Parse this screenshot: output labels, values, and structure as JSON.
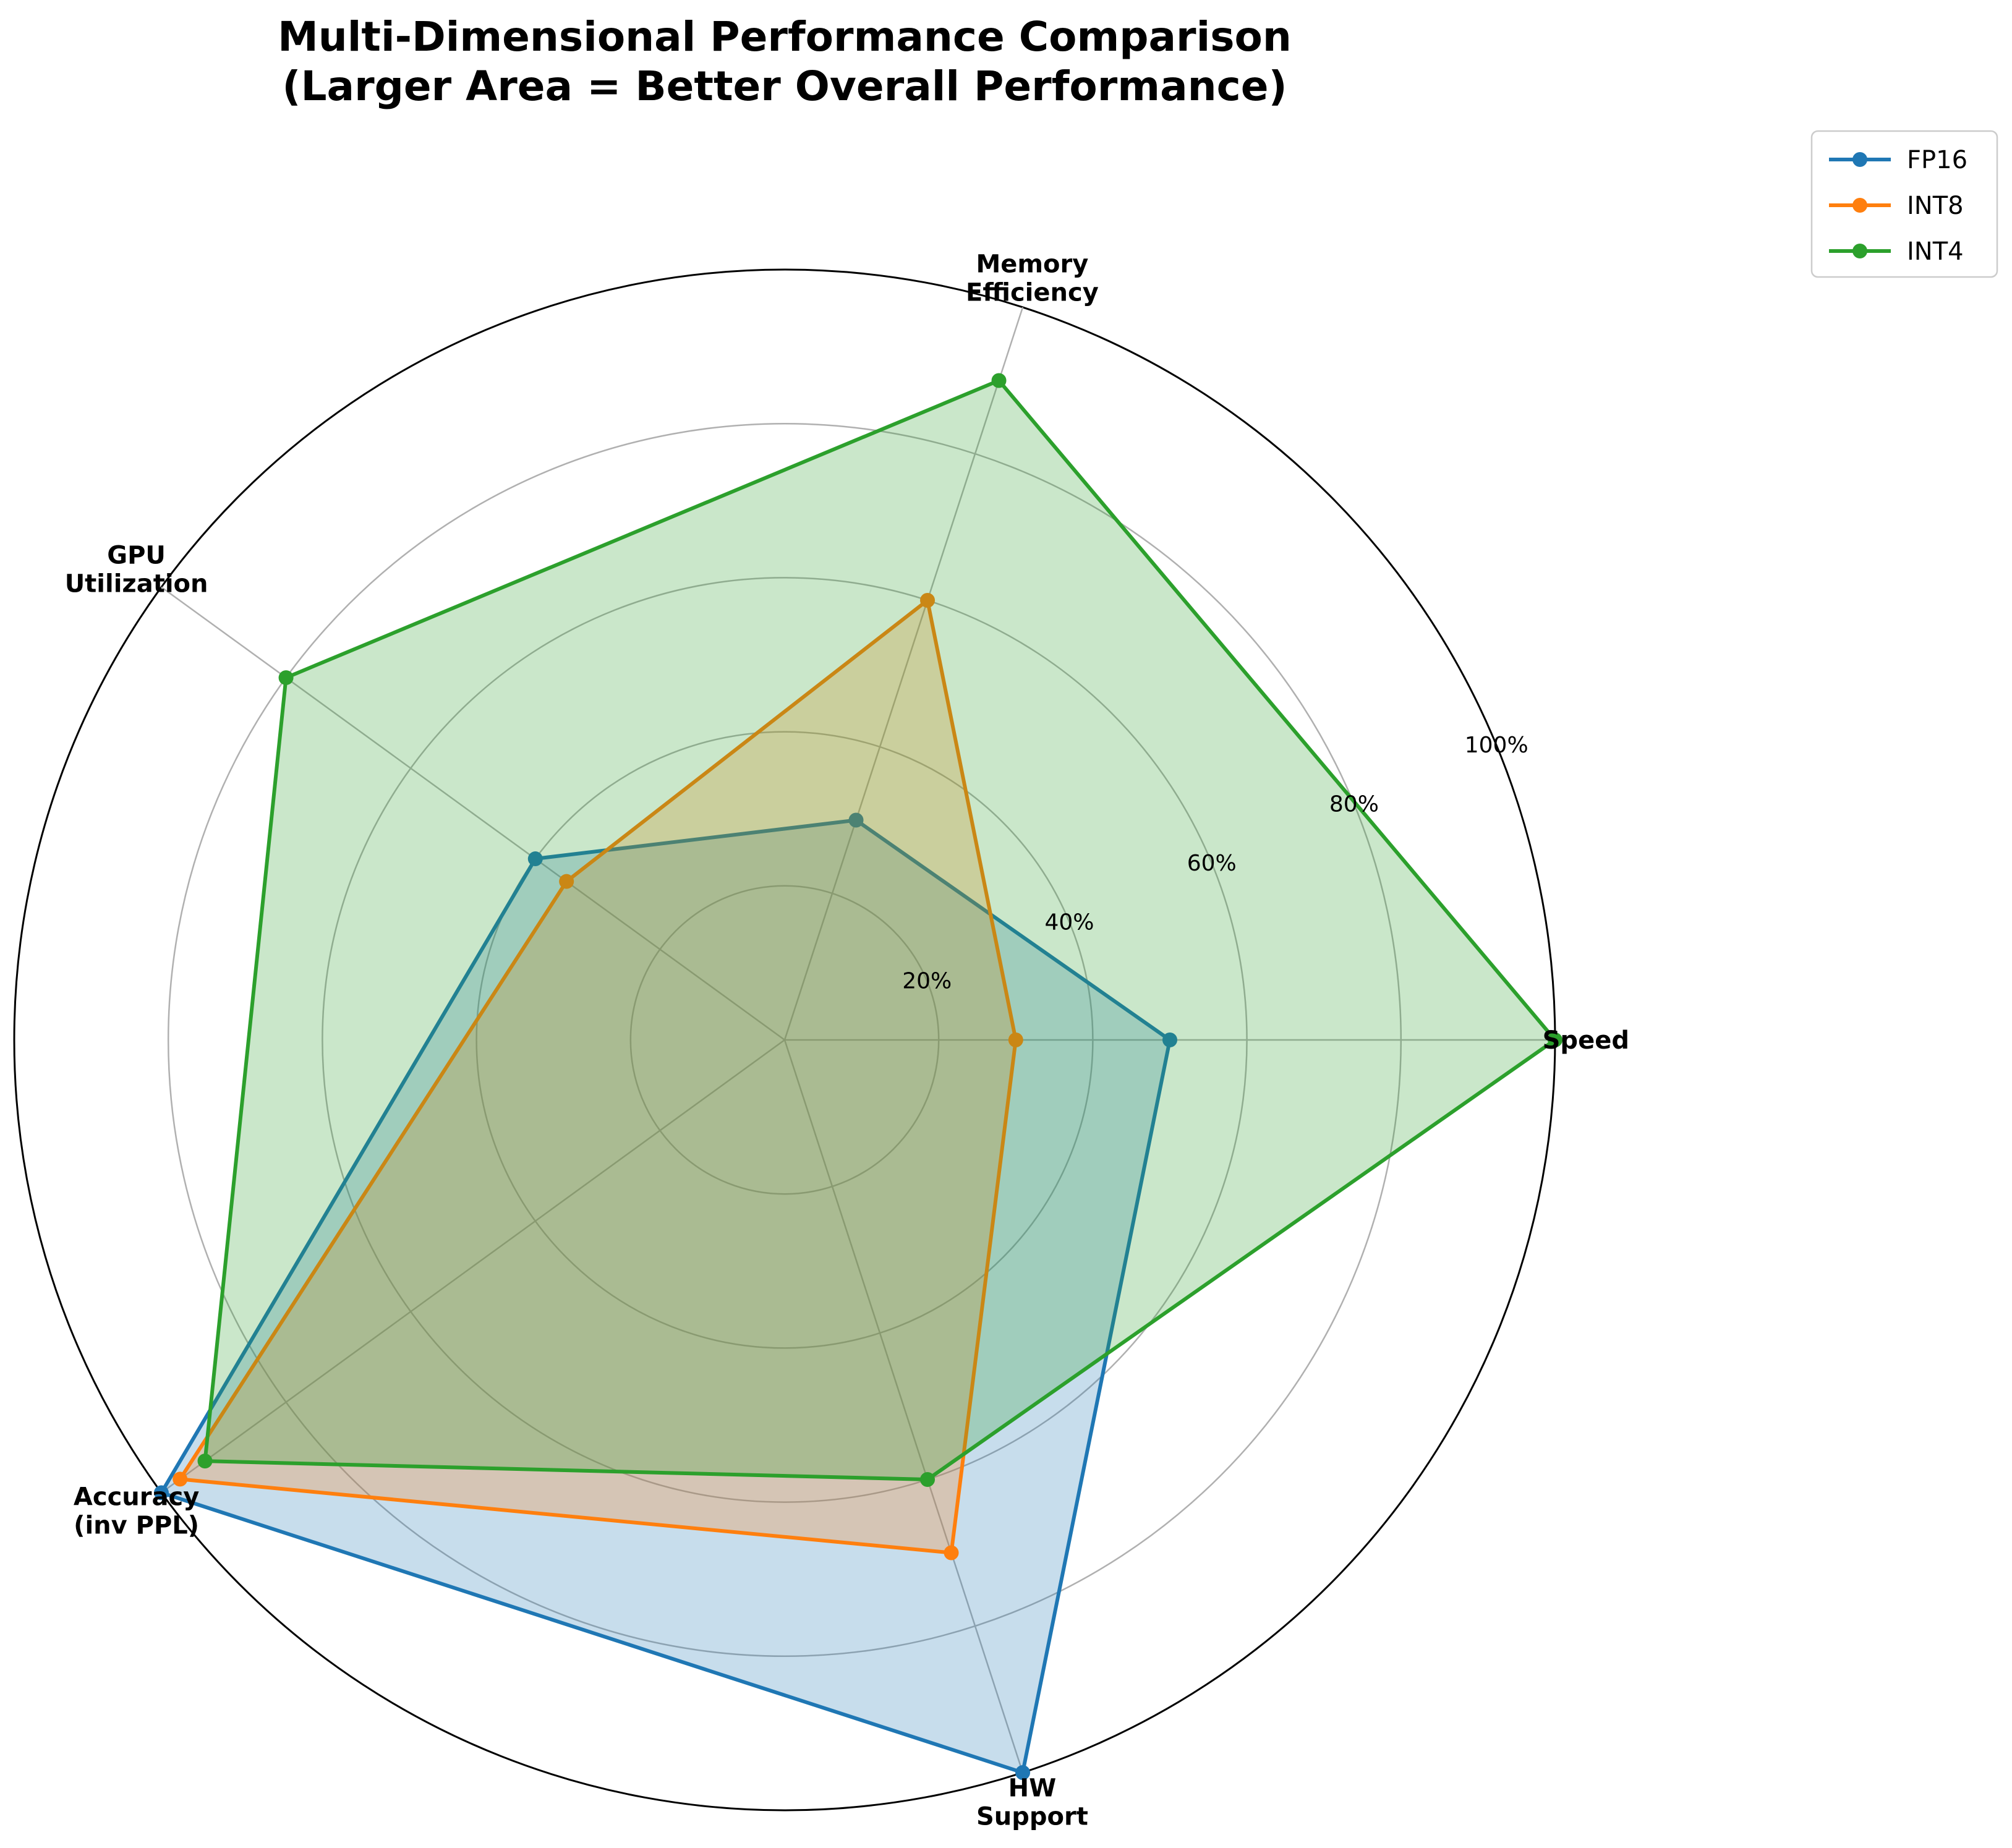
{
  "chart_data": {
    "type": "radar",
    "title": "Multi-Dimensional Performance Comparison\n(Larger Area = Better Overall Performance)",
    "axes": [
      "Speed",
      "Memory\nEfficiency",
      "GPU\nUtilization",
      "Accuracy\n(inv PPL)",
      "HW\nSupport"
    ],
    "rlim": [
      0,
      100
    ],
    "r_ticks": [
      20,
      40,
      60,
      80,
      100
    ],
    "r_tick_labels": [
      "20%",
      "40%",
      "60%",
      "80%",
      "100%"
    ],
    "grid": true,
    "legend_position": "top-right",
    "series": [
      {
        "name": "FP16",
        "color": "#1f77b4",
        "values": [
          50,
          30,
          40,
          100,
          100
        ]
      },
      {
        "name": "INT8",
        "color": "#ff7f0e",
        "values": [
          30,
          60,
          35,
          97,
          70
        ]
      },
      {
        "name": "INT4",
        "color": "#2ca02c",
        "values": [
          100,
          90,
          80,
          93,
          60
        ]
      }
    ]
  }
}
